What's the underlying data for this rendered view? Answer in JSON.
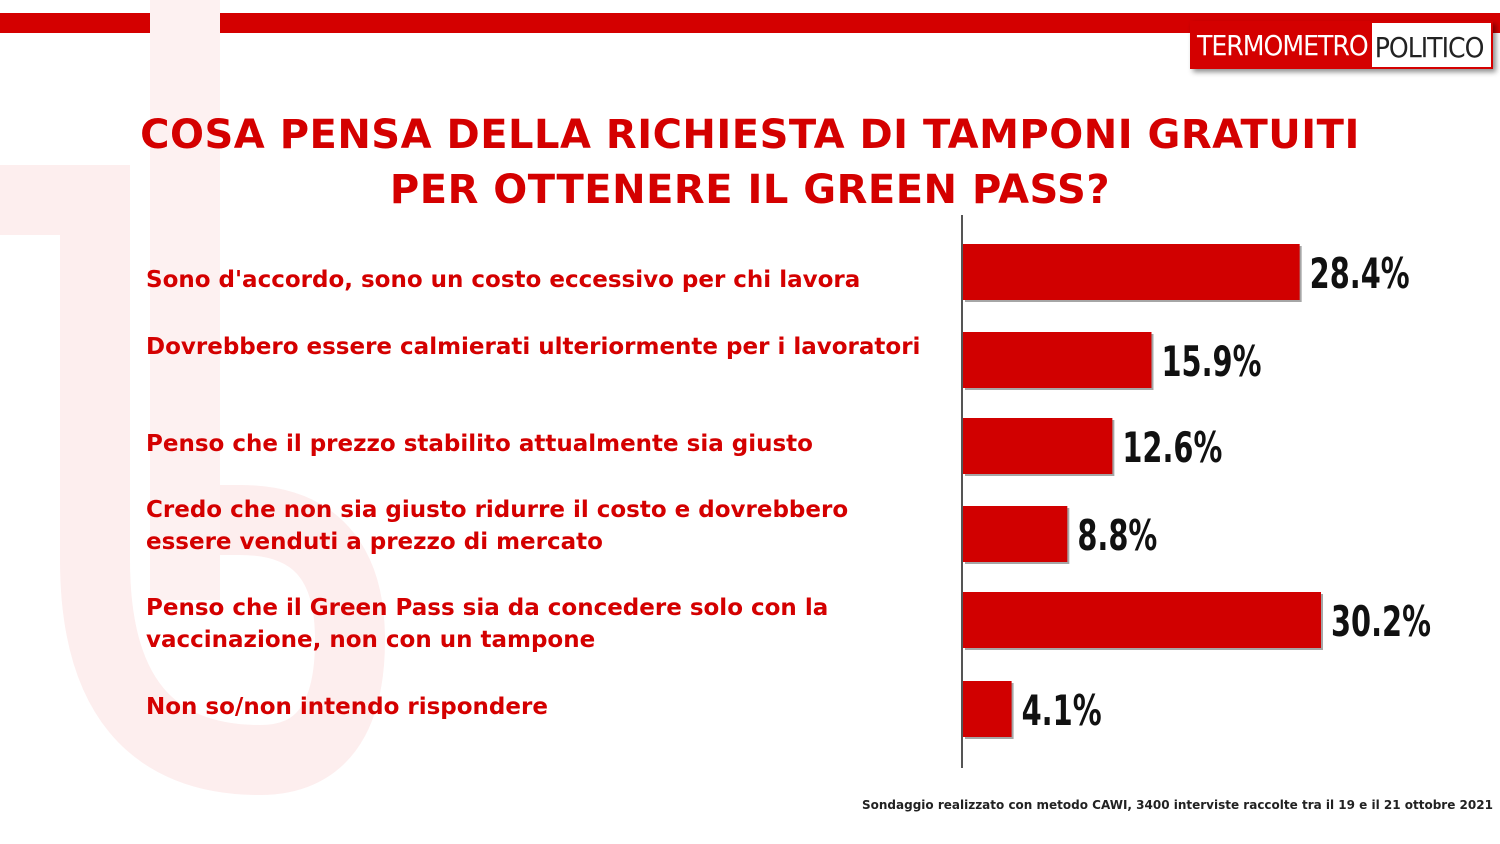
{
  "logo": {
    "part1": "TERMOMETRO",
    "part2": "POLITICO"
  },
  "colors": {
    "accent": "#d40000",
    "bar": "#d10000",
    "text": "#111111"
  },
  "title_lines": [
    "COSA PENSA DELLA RICHIESTA DI TAMPONI GRATUITI",
    "PER OTTENERE IL GREEN PASS?"
  ],
  "chart_data": {
    "type": "bar",
    "orientation": "horizontal",
    "categories": [
      "Sono d'accordo, sono un costo eccessivo per chi lavora",
      "Dovrebbero essere calmierati ulteriormente per i lavoratori",
      "Penso che il prezzo stabilito attualmente sia giusto",
      "Credo che non sia giusto ridurre il costo e dovrebbero essere venduti a prezzo di mercato",
      "Penso che il Green Pass sia da concedere solo con la vaccinazione, non con un tampone",
      "Non so/non intendo rispondere"
    ],
    "values": [
      28.4,
      15.9,
      12.6,
      8.8,
      30.2,
      4.1
    ],
    "data_labels": [
      "28.4%",
      "15.9%",
      "12.6%",
      "8.8%",
      "30.2%",
      "4.1%"
    ],
    "xlim": [
      0,
      40
    ],
    "grid": false
  },
  "footnote": "Sondaggio realizzato con metodo CAWI, 3400 interviste raccolte tra il 19 e il 21  ottobre 2021"
}
